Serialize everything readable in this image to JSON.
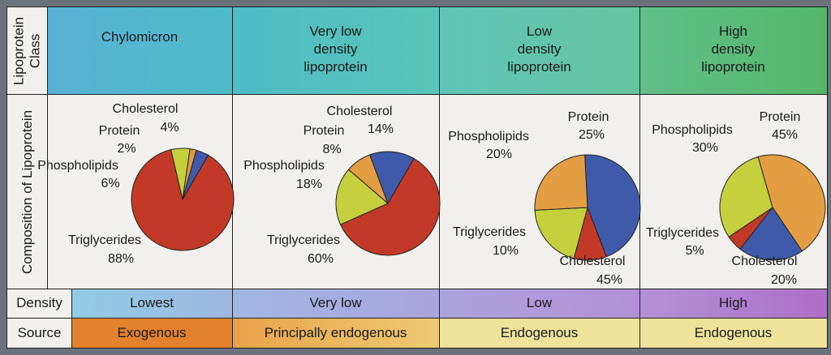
{
  "row_labels": {
    "class": [
      "Lipoprotein",
      "Class"
    ],
    "composition": "Composition of Lipoprotein",
    "density": "Density",
    "source": "Source"
  },
  "colors": {
    "triglycerides": "#c23a27",
    "cholesterol": "#3f5aa8",
    "protein": "#e39d43",
    "phospholipids": "#c5d03f",
    "header_chylomicron": "#5ab6d2",
    "header_vldl": "#50bcc1",
    "header_ldl": "#66c7b0",
    "header_hdl": "#5ab872"
  },
  "columns": [
    {
      "name_lines": [
        "Chylomicron"
      ],
      "density": "Lowest",
      "source": "Exogenous",
      "slices": [
        {
          "key": "triglycerides",
          "label_lines": [
            "Triglycerides",
            "88%"
          ],
          "value": 88
        },
        {
          "key": "phospholipids",
          "label_lines": [
            "Phospholipids",
            "6%"
          ],
          "value": 6
        },
        {
          "key": "protein",
          "label_lines": [
            "Protein",
            "2%"
          ],
          "value": 2
        },
        {
          "key": "cholesterol",
          "label_lines": [
            "Cholesterol",
            "4%"
          ],
          "value": 4
        }
      ]
    },
    {
      "name_lines": [
        "Very low",
        "density",
        "lipoprotein"
      ],
      "density": "Very low",
      "source": "Principally endogenous",
      "slices": [
        {
          "key": "triglycerides",
          "label_lines": [
            "Triglycerides",
            "60%"
          ],
          "value": 60
        },
        {
          "key": "phospholipids",
          "label_lines": [
            "Phospholipids",
            "18%"
          ],
          "value": 18
        },
        {
          "key": "protein",
          "label_lines": [
            "Protein",
            "8%"
          ],
          "value": 8
        },
        {
          "key": "cholesterol",
          "label_lines": [
            "Cholesterol",
            "14%"
          ],
          "value": 14
        }
      ]
    },
    {
      "name_lines": [
        "Low",
        "density",
        "lipoprotein"
      ],
      "density": "Low",
      "source": "Endogenous",
      "slices": [
        {
          "key": "cholesterol",
          "label_lines": [
            "Cholesterol",
            "45%"
          ],
          "value": 45
        },
        {
          "key": "triglycerides",
          "label_lines": [
            "Triglycerides",
            "10%"
          ],
          "value": 10
        },
        {
          "key": "phospholipids",
          "label_lines": [
            "Phospholipids",
            "20%"
          ],
          "value": 20
        },
        {
          "key": "protein",
          "label_lines": [
            "Protein",
            "25%"
          ],
          "value": 25
        }
      ]
    },
    {
      "name_lines": [
        "High",
        "density",
        "lipoprotein"
      ],
      "density": "High",
      "source": "Endogenous",
      "slices": [
        {
          "key": "protein",
          "label_lines": [
            "Protein",
            "45%"
          ],
          "value": 45
        },
        {
          "key": "cholesterol",
          "label_lines": [
            "Cholesterol",
            "20%"
          ],
          "value": 20
        },
        {
          "key": "triglycerides",
          "label_lines": [
            "Triglycerides",
            "5%"
          ],
          "value": 5
        },
        {
          "key": "phospholipids",
          "label_lines": [
            "Phospholipids",
            "30%"
          ],
          "value": 30
        }
      ]
    }
  ],
  "chart_data": [
    {
      "type": "pie",
      "title": "Chylomicron",
      "categories": [
        "Triglycerides",
        "Phospholipids",
        "Protein",
        "Cholesterol"
      ],
      "values": [
        88,
        6,
        2,
        4
      ]
    },
    {
      "type": "pie",
      "title": "Very low density lipoprotein",
      "categories": [
        "Triglycerides",
        "Phospholipids",
        "Protein",
        "Cholesterol"
      ],
      "values": [
        60,
        18,
        8,
        14
      ]
    },
    {
      "type": "pie",
      "title": "Low density lipoprotein",
      "categories": [
        "Cholesterol",
        "Triglycerides",
        "Phospholipids",
        "Protein"
      ],
      "values": [
        45,
        10,
        20,
        25
      ]
    },
    {
      "type": "pie",
      "title": "High density lipoprotein",
      "categories": [
        "Protein",
        "Cholesterol",
        "Triglycerides",
        "Phospholipids"
      ],
      "values": [
        45,
        20,
        5,
        30
      ]
    }
  ]
}
